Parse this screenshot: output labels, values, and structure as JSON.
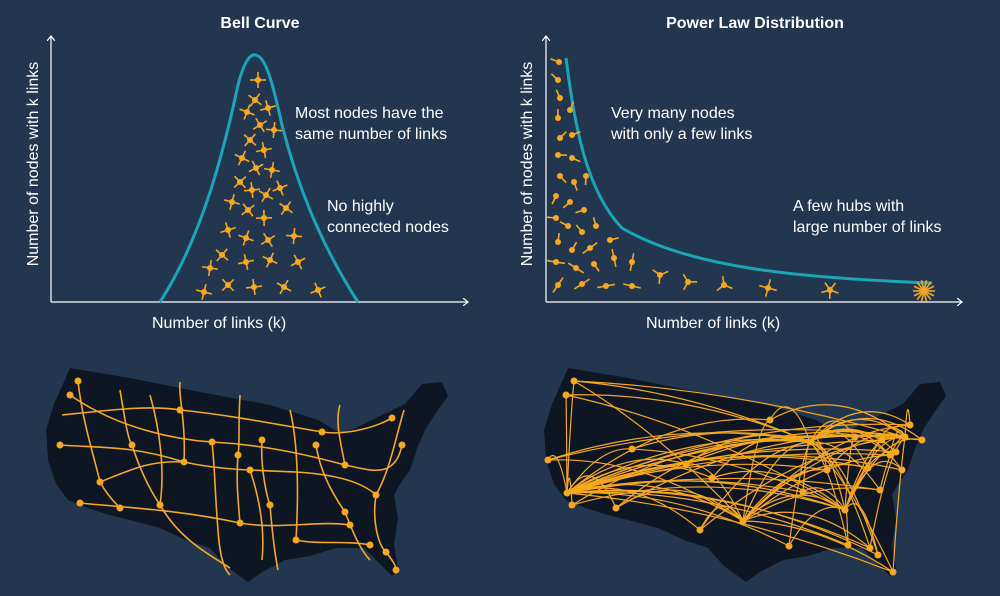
{
  "colors": {
    "background": "#223650",
    "curve": "#1aa6b7",
    "node": "#f6a91d",
    "land": "#0d1622",
    "axis": "#ffffff"
  },
  "left_panel": {
    "title": "Bell Curve",
    "ylabel": "Number of nodes with k links",
    "xlabel": "Number of links (k)",
    "annotations": [
      "Most nodes have the\nsame number of links",
      "No highly\nconnected nodes"
    ],
    "map": "network-of-highways"
  },
  "right_panel": {
    "title": "Power Law Distribution",
    "ylabel": "Number of nodes with k links",
    "xlabel": "Number of links (k)",
    "annotations": [
      "Very many nodes\nwith only a few links",
      "A few hubs with\nlarge number of links"
    ],
    "map": "network-of-airline-routes"
  }
}
